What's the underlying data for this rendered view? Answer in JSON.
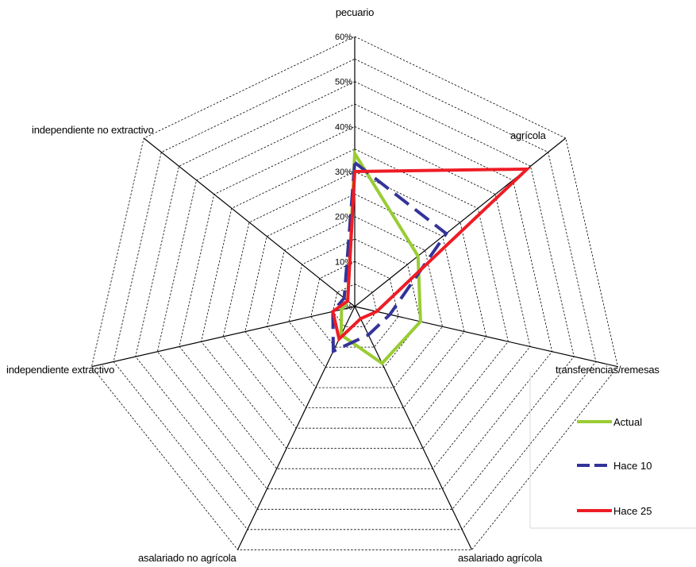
{
  "chart_data": {
    "type": "radar",
    "axes": [
      "pecuario",
      "agrícola",
      "transferencias/remesas",
      "asalariado agrícola",
      "asalariado no agrícola",
      "independiente extractivo",
      "independiente no extractivo"
    ],
    "ticks": [
      "0%",
      "10%",
      "20%",
      "30%",
      "40%",
      "50%",
      "60%"
    ],
    "range": [
      0,
      60
    ],
    "grid": "dashed",
    "legend_position": "bottom-right",
    "series": [
      {
        "name": "Actual",
        "color": "#99cc33",
        "dash": "solid",
        "values": [
          34,
          18,
          15,
          14,
          7,
          3,
          2
        ]
      },
      {
        "name": "Hace 10",
        "color": "#333399",
        "dash": "dashed",
        "values": [
          32,
          26,
          8,
          7,
          11,
          5,
          3
        ]
      },
      {
        "name": "Hace 25",
        "color": "#ee1c25",
        "dash": "solid",
        "values": [
          30,
          49,
          5,
          3,
          8,
          5,
          2
        ]
      }
    ]
  }
}
